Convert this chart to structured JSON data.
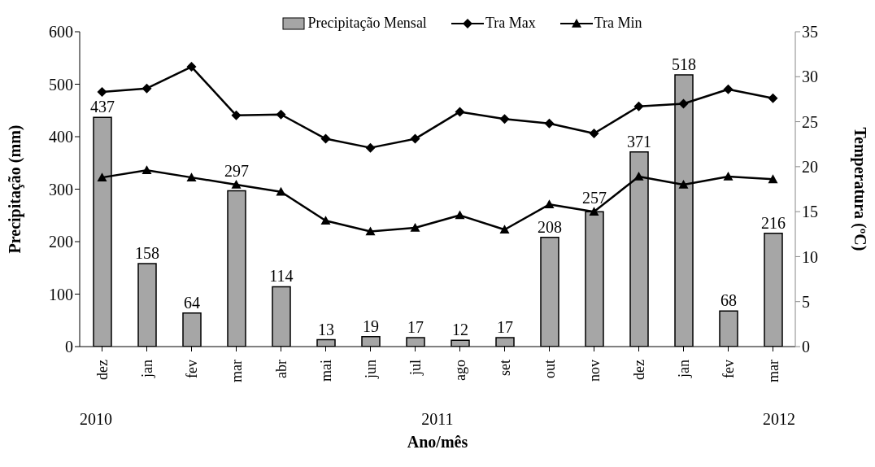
{
  "chart_data": {
    "type": "bar",
    "xlabel": "Ano/mês",
    "ylabel": "Precipitação (mm)",
    "y2label": "Temperatura (ºC)",
    "categories": [
      "dez",
      "jan",
      "fev",
      "mar",
      "abr",
      "mai",
      "jun",
      "jul",
      "ago",
      "set",
      "out",
      "nov",
      "dez",
      "jan",
      "fev",
      "mar"
    ],
    "series": [
      {
        "name": "Precipitação Mensal",
        "color": "#a6a6a6",
        "values": [
          437,
          158,
          64,
          297,
          114,
          13,
          19,
          17,
          12,
          17,
          208,
          257,
          371,
          518,
          68,
          216
        ],
        "value_labels": [
          "437",
          "158",
          "64",
          "297",
          "114",
          "13",
          "19",
          "17",
          "12",
          "17",
          "208",
          "257",
          "371",
          "518",
          "68",
          "216"
        ]
      },
      {
        "name": "Tra Max",
        "type": "line",
        "axis": "y2",
        "color": "#000000",
        "marker": "diamond",
        "values": [
          28.3,
          28.7,
          31.1,
          25.7,
          25.8,
          23.1,
          22.1,
          23.1,
          26.1,
          25.3,
          24.8,
          23.7,
          26.7,
          27.0,
          28.6,
          27.6
        ]
      },
      {
        "name": "Tra Min",
        "type": "line",
        "axis": "y2",
        "color": "#000000",
        "marker": "triangle",
        "values": [
          18.8,
          19.6,
          18.8,
          18.0,
          17.2,
          14.0,
          12.8,
          13.2,
          14.6,
          13.0,
          15.8,
          15.0,
          18.9,
          18.0,
          18.9,
          18.6
        ]
      }
    ],
    "ylim": [
      0,
      600
    ],
    "yticks": [
      0,
      100,
      200,
      300,
      400,
      500,
      600
    ],
    "y2lim": [
      0,
      35
    ],
    "y2ticks": [
      0,
      5,
      10,
      15,
      20,
      25,
      30,
      35
    ],
    "annotations": [
      "2010",
      "2011",
      "2012"
    ],
    "legend": "top",
    "grid": false
  }
}
